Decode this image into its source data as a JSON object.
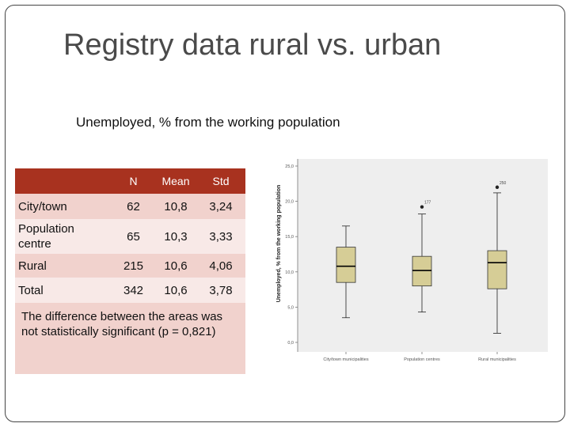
{
  "slide": {
    "title": "Registry data rural vs. urban",
    "subtitle": "Unemployed, % from the working population"
  },
  "table": {
    "headers": [
      "",
      "N",
      "Mean",
      "Std"
    ],
    "rows": [
      {
        "label": "City/town",
        "n": "62",
        "mean": "10,8",
        "std": "3,24"
      },
      {
        "label": "Population centre",
        "n": "65",
        "mean": "10,3",
        "std": "3,33"
      },
      {
        "label": "Rural",
        "n": "215",
        "mean": "10,6",
        "std": "4,06"
      },
      {
        "label": "Total",
        "n": "342",
        "mean": "10,6",
        "std": "3,78"
      }
    ],
    "note": "The difference between the areas was not statistically significant (p = 0,821)"
  },
  "colors": {
    "header_bg": "#a8321f",
    "row_dark": "#f1d2cd",
    "row_light": "#f8e9e7",
    "box_fill": "#d6cd96",
    "plot_bg": "#eeeeee"
  },
  "chart_data": {
    "type": "boxplot",
    "ylabel": "Unemployed, % from the working population",
    "ylim": [
      0,
      25
    ],
    "yticks": [
      "25,0",
      "20,0",
      "15,0",
      "10,0",
      "5,0",
      "0,0"
    ],
    "categories": [
      "City/town municipalities",
      "Population centres",
      "Rural municipalities"
    ],
    "boxes": [
      {
        "min": 3.5,
        "q1": 8.5,
        "median": 10.8,
        "q3": 13.5,
        "max": 16.5,
        "outliers": []
      },
      {
        "min": 4.3,
        "q1": 8.0,
        "median": 10.2,
        "q3": 12.2,
        "max": 18.2,
        "outliers": [
          {
            "value": 19.2,
            "label": "177"
          }
        ]
      },
      {
        "min": 1.3,
        "q1": 7.6,
        "median": 11.3,
        "q3": 13.0,
        "max": 21.2,
        "outliers": [
          {
            "value": 22.0,
            "label": "250"
          }
        ]
      }
    ],
    "grid": false
  }
}
